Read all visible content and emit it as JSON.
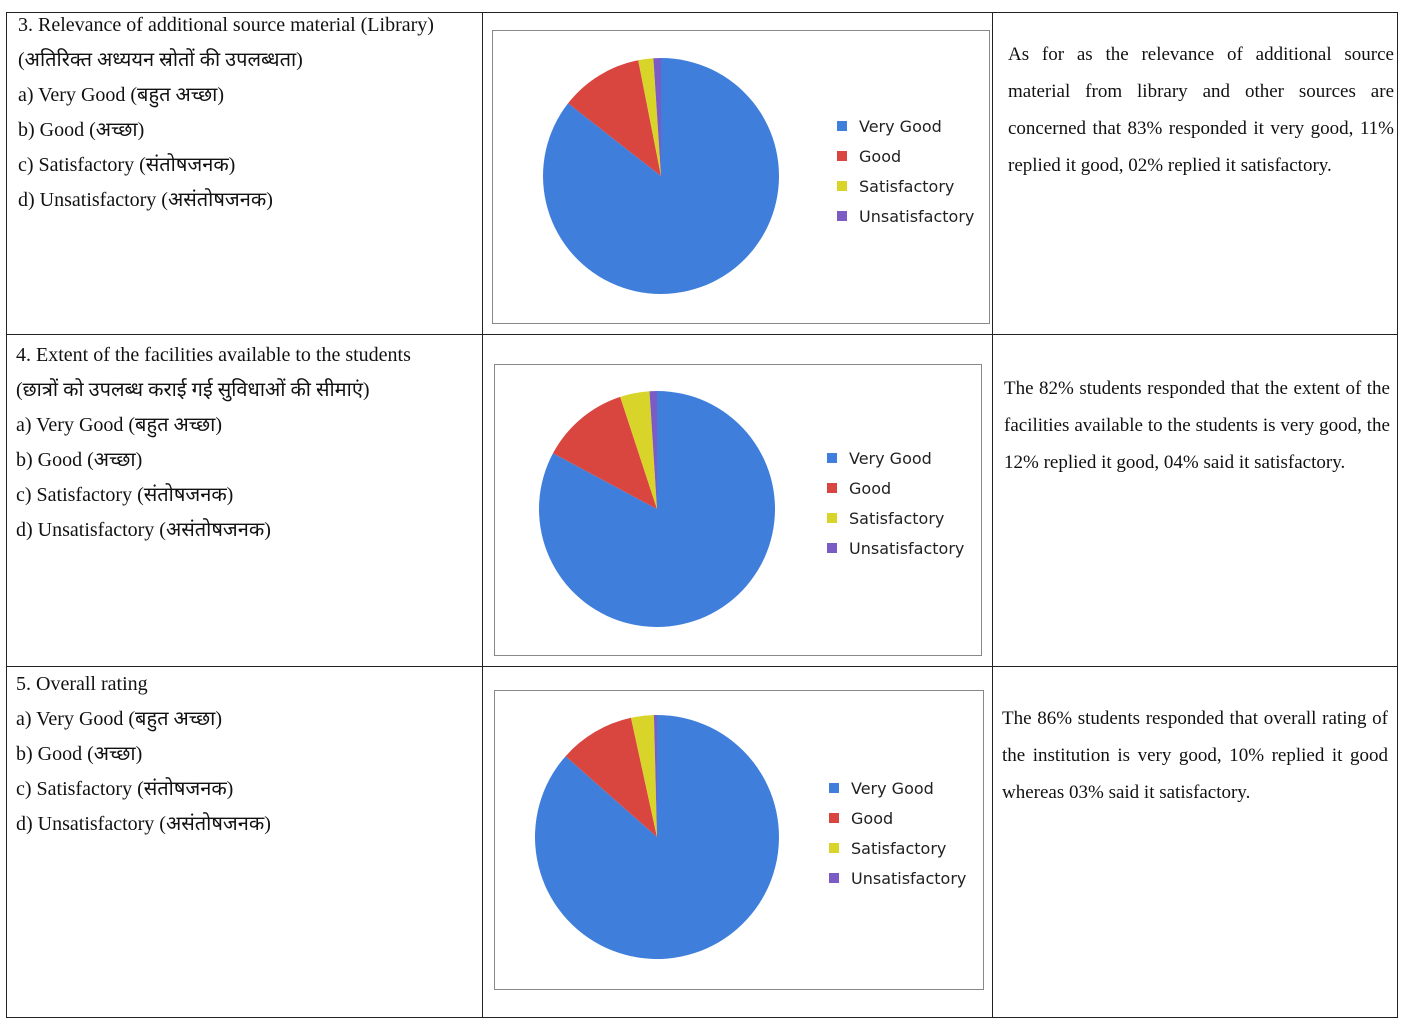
{
  "rows": [
    {
      "question": "3. Relevance of additional source material (Library)",
      "question_hindi": "(अतिरिक्त अध्ययन स्रोतों की उपलब्धता)",
      "options": [
        "a) Very Good (बहुत अच्छा)",
        "b) Good (अच्छा)",
        "c) Satisfactory (संतोषजनक)",
        "d) Unsatisfactory (असंतोषजनक)"
      ],
      "description": "As for as the relevance of additional source material from library and other sources are concerned that 83% responded it very good, 11% replied it good, 02% replied it satisfactory."
    },
    {
      "question": "4. Extent of the facilities available to the students",
      "question_hindi": "(छात्रों को उपलब्ध कराई गई सुविधाओं की सीमाएं)",
      "options": [
        "a) Very Good (बहुत अच्छा)",
        "b) Good (अच्छा)",
        "c) Satisfactory (संतोषजनक)",
        "d) Unsatisfactory (असंतोषजनक)"
      ],
      "description": "The 82% students responded that the extent of the facilities available to the students is very good, the 12% replied it good, 04% said it satisfactory."
    },
    {
      "question": "5. Overall rating",
      "question_hindi": "",
      "options": [
        "a) Very Good (बहुत अच्छा)",
        "b) Good (अच्छा)",
        "c) Satisfactory (संतोषजनक)",
        "d) Unsatisfactory (असंतोषजनक)"
      ],
      "description": "The 86% students responded that overall rating of the institution is very good, 10% replied it good whereas 03% said it satisfactory."
    }
  ],
  "colors": {
    "very_good": "#3f7fdb",
    "good": "#d9463f",
    "satisfactory": "#d8d42a",
    "unsatisfactory": "#7b5cc4"
  },
  "chart_data": [
    {
      "type": "pie",
      "categories": [
        "Very Good",
        "Good",
        "Satisfactory",
        "Unsatisfactory"
      ],
      "values": [
        83,
        11,
        2,
        1
      ],
      "legend": "right"
    },
    {
      "type": "pie",
      "categories": [
        "Very Good",
        "Good",
        "Satisfactory",
        "Unsatisfactory"
      ],
      "values": [
        82,
        12,
        4,
        1
      ],
      "legend": "right"
    },
    {
      "type": "pie",
      "categories": [
        "Very Good",
        "Good",
        "Satisfactory",
        "Unsatisfactory"
      ],
      "values": [
        86,
        10,
        3,
        0.4
      ],
      "legend": "right"
    }
  ]
}
